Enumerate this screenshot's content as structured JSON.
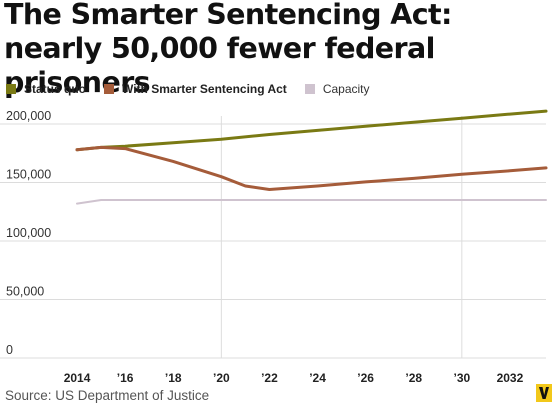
{
  "title": "The Smarter Sentencing Act: nearly 50,000 fewer federal prisoners",
  "source": "Source: US Department of Justice",
  "chart_data": {
    "type": "line",
    "title": "The Smarter Sentencing Act: nearly 50,000 fewer federal prisoners",
    "xlabel": "",
    "ylabel": "",
    "xlim": [
      2013,
      2033.5
    ],
    "ylim": [
      0,
      200000
    ],
    "x_ticks": [
      2014,
      2016,
      2018,
      2020,
      2022,
      2024,
      2026,
      2028,
      2030,
      2032
    ],
    "x_tick_labels": [
      "2014",
      "’16",
      "’18",
      "’20",
      "’22",
      "’24",
      "’26",
      "’28",
      "’30",
      "2032"
    ],
    "y_ticks": [
      0,
      50000,
      100000,
      150000,
      200000
    ],
    "y_tick_labels": [
      "0",
      "50,000",
      "100,000",
      "150,000",
      "200,000"
    ],
    "grid": "horizontal lines plus vertical lines at 2020 and 2030",
    "legend_position": "top-left",
    "series": [
      {
        "name": "Status quo",
        "color": "#7a7a14",
        "x": [
          2014,
          2015,
          2016,
          2018,
          2020,
          2022,
          2024,
          2026,
          2028,
          2030,
          2032,
          2033.5
        ],
        "y": [
          178000,
          180000,
          181000,
          184000,
          187000,
          191000,
          194500,
          198000,
          201500,
          205000,
          208500,
          211000
        ]
      },
      {
        "name": "With Smarter Sentencing Act",
        "color": "#a55c3a",
        "x": [
          2014,
          2015,
          2016,
          2018,
          2020,
          2021,
          2022,
          2024,
          2026,
          2028,
          2030,
          2032,
          2033.5
        ],
        "y": [
          178000,
          180000,
          179000,
          168000,
          155000,
          147000,
          144000,
          147000,
          150500,
          153500,
          157000,
          160000,
          162500
        ]
      },
      {
        "name": "Capacity",
        "color": "#cfc3cf",
        "x": [
          2014,
          2015,
          2016,
          2018,
          2020,
          2022,
          2024,
          2026,
          2028,
          2030,
          2032,
          2033.5
        ],
        "y": [
          132000,
          135000,
          135000,
          135000,
          135000,
          135000,
          135000,
          135000,
          135000,
          135000,
          135000,
          135000
        ]
      }
    ]
  }
}
